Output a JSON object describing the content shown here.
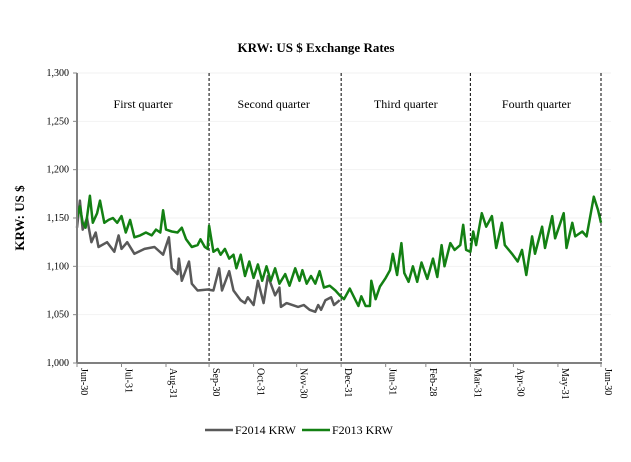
{
  "chart_data": {
    "type": "line",
    "title": "KRW: US $ Exchange Rates",
    "ylabel": "KRW: US $",
    "xlabel": "",
    "ylim": [
      1000,
      1300
    ],
    "yticks": [
      1000,
      1050,
      1100,
      1150,
      1200,
      1250,
      1300
    ],
    "ytick_labels": [
      "1,000",
      "1,050",
      "1,100",
      "1,150",
      "1,200",
      "1,250",
      "1,300"
    ],
    "xlim_days": [
      0,
      365
    ],
    "xticks": [
      {
        "label": "Jun-30",
        "day": 0
      },
      {
        "label": "Jul-31",
        "day": 31
      },
      {
        "label": "Aug-31",
        "day": 62
      },
      {
        "label": "Sep-30",
        "day": 92
      },
      {
        "label": "Oct-31",
        "day": 123
      },
      {
        "label": "Nov-30",
        "day": 153
      },
      {
        "label": "Dec-31",
        "day": 184
      },
      {
        "label": "Jun-31",
        "day": 215
      },
      {
        "label": "Feb-28",
        "day": 243
      },
      {
        "label": "Mar-31",
        "day": 274
      },
      {
        "label": "Apr-30",
        "day": 304
      },
      {
        "label": "May-31",
        "day": 335
      },
      {
        "label": "Jun-30",
        "day": 365
      }
    ],
    "grid": true,
    "quarter_dividers_days": [
      92,
      184,
      274,
      365
    ],
    "annotations": [
      {
        "text": "First quarter",
        "day": 46
      },
      {
        "text": "Second quarter",
        "day": 137
      },
      {
        "text": "Third quarter",
        "day": 229
      },
      {
        "text": "Fourth quarter",
        "day": 320
      }
    ],
    "legend_position": "bottom",
    "series": [
      {
        "name": "F2014 KRW",
        "color": "#595959",
        "points": [
          [
            0,
            1140
          ],
          [
            2,
            1168
          ],
          [
            4,
            1138
          ],
          [
            7,
            1150
          ],
          [
            10,
            1125
          ],
          [
            13,
            1135
          ],
          [
            15,
            1120
          ],
          [
            21,
            1125
          ],
          [
            26,
            1115
          ],
          [
            29,
            1132
          ],
          [
            31,
            1118
          ],
          [
            35,
            1125
          ],
          [
            40,
            1113
          ],
          [
            47,
            1118
          ],
          [
            54,
            1120
          ],
          [
            60,
            1112
          ],
          [
            64,
            1130
          ],
          [
            66,
            1098
          ],
          [
            70,
            1092
          ],
          [
            71,
            1108
          ],
          [
            73,
            1085
          ],
          [
            78,
            1105
          ],
          [
            80,
            1082
          ],
          [
            84,
            1075
          ],
          [
            91,
            1076
          ],
          [
            95,
            1075
          ],
          [
            99,
            1098
          ],
          [
            101,
            1075
          ],
          [
            106,
            1095
          ],
          [
            109,
            1075
          ],
          [
            114,
            1065
          ],
          [
            117,
            1062
          ],
          [
            119,
            1068
          ],
          [
            123,
            1060
          ],
          [
            126,
            1085
          ],
          [
            130,
            1062
          ],
          [
            133,
            1090
          ],
          [
            138,
            1070
          ],
          [
            141,
            1078
          ],
          [
            142,
            1058
          ],
          [
            146,
            1062
          ],
          [
            154,
            1058
          ],
          [
            158,
            1060
          ],
          [
            162,
            1055
          ],
          [
            166,
            1053
          ],
          [
            168,
            1060
          ],
          [
            170,
            1055
          ],
          [
            173,
            1065
          ],
          [
            177,
            1068
          ],
          [
            179,
            1060
          ],
          [
            183,
            1065
          ]
        ]
      },
      {
        "name": "F2013 KRW",
        "color": "#138013",
        "points": [
          [
            0,
            1150
          ],
          [
            2,
            1162
          ],
          [
            4,
            1145
          ],
          [
            6,
            1140
          ],
          [
            9,
            1173
          ],
          [
            11,
            1145
          ],
          [
            14,
            1155
          ],
          [
            16,
            1168
          ],
          [
            19,
            1145
          ],
          [
            22,
            1148
          ],
          [
            25,
            1150
          ],
          [
            28,
            1145
          ],
          [
            31,
            1152
          ],
          [
            34,
            1135
          ],
          [
            37,
            1148
          ],
          [
            40,
            1130
          ],
          [
            44,
            1132
          ],
          [
            48,
            1135
          ],
          [
            52,
            1132
          ],
          [
            55,
            1138
          ],
          [
            58,
            1135
          ],
          [
            60,
            1158
          ],
          [
            62,
            1138
          ],
          [
            66,
            1136
          ],
          [
            70,
            1135
          ],
          [
            73,
            1140
          ],
          [
            76,
            1128
          ],
          [
            80,
            1120
          ],
          [
            84,
            1122
          ],
          [
            86,
            1128
          ],
          [
            89,
            1120
          ],
          [
            91,
            1118
          ],
          [
            92,
            1142
          ],
          [
            95,
            1115
          ],
          [
            98,
            1118
          ],
          [
            100,
            1112
          ],
          [
            103,
            1118
          ],
          [
            106,
            1108
          ],
          [
            109,
            1112
          ],
          [
            111,
            1098
          ],
          [
            114,
            1112
          ],
          [
            117,
            1090
          ],
          [
            120,
            1105
          ],
          [
            123,
            1088
          ],
          [
            126,
            1102
          ],
          [
            129,
            1085
          ],
          [
            132,
            1100
          ],
          [
            135,
            1085
          ],
          [
            138,
            1098
          ],
          [
            141,
            1082
          ],
          [
            145,
            1092
          ],
          [
            148,
            1080
          ],
          [
            152,
            1098
          ],
          [
            155,
            1085
          ],
          [
            157,
            1096
          ],
          [
            160,
            1082
          ],
          [
            163,
            1090
          ],
          [
            166,
            1082
          ],
          [
            169,
            1095
          ],
          [
            172,
            1078
          ],
          [
            176,
            1080
          ],
          [
            180,
            1075
          ],
          [
            183,
            1070
          ],
          [
            186,
            1066
          ],
          [
            190,
            1077
          ],
          [
            191,
            1074
          ],
          [
            196,
            1059
          ],
          [
            198,
            1069
          ],
          [
            201,
            1059
          ],
          [
            204,
            1059
          ],
          [
            205,
            1085
          ],
          [
            208,
            1066
          ],
          [
            211,
            1079
          ],
          [
            215,
            1088
          ],
          [
            218,
            1096
          ],
          [
            220,
            1113
          ],
          [
            223,
            1091
          ],
          [
            226,
            1124
          ],
          [
            228,
            1093
          ],
          [
            231,
            1084
          ],
          [
            234,
            1100
          ],
          [
            237,
            1084
          ],
          [
            240,
            1104
          ],
          [
            244,
            1087
          ],
          [
            248,
            1108
          ],
          [
            251,
            1089
          ],
          [
            254,
            1122
          ],
          [
            256,
            1100
          ],
          [
            260,
            1124
          ],
          [
            263,
            1117
          ],
          [
            267,
            1122
          ],
          [
            269,
            1143
          ],
          [
            271,
            1117
          ],
          [
            274,
            1115
          ],
          [
            276,
            1136
          ],
          [
            278,
            1122
          ],
          [
            282,
            1155
          ],
          [
            285,
            1141
          ],
          [
            289,
            1152
          ],
          [
            292,
            1119
          ],
          [
            296,
            1145
          ],
          [
            298,
            1122
          ],
          [
            303,
            1113
          ],
          [
            307,
            1105
          ],
          [
            310,
            1117
          ],
          [
            313,
            1091
          ],
          [
            317,
            1131
          ],
          [
            319,
            1113
          ],
          [
            324,
            1141
          ],
          [
            326,
            1119
          ],
          [
            331,
            1152
          ],
          [
            333,
            1129
          ],
          [
            339,
            1155
          ],
          [
            341,
            1119
          ],
          [
            345,
            1145
          ],
          [
            347,
            1131
          ],
          [
            352,
            1136
          ],
          [
            355,
            1131
          ],
          [
            360,
            1172
          ],
          [
            363,
            1158
          ],
          [
            365,
            1145
          ]
        ]
      }
    ]
  }
}
